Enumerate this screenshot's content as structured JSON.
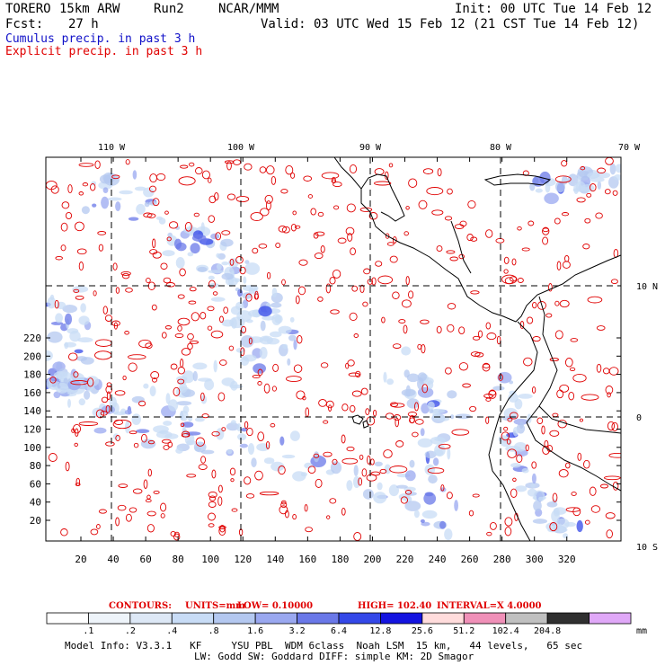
{
  "header": {
    "model": "TORERO",
    "resolution": "15km ARW",
    "run": "Run2",
    "org": "NCAR/MMM",
    "fcst_label": "Fcst:",
    "fcst_value": "27 h",
    "init": "Init: 00 UTC Tue 14 Feb 12",
    "valid": "Valid: 03 UTC Wed 15 Feb 12 (21 CST Tue 14 Feb 12)",
    "cumulus": "Cumulus precip. in past 3 h",
    "explicit": "Explicit precip. in past 3 h"
  },
  "map": {
    "lon_labels": [
      "110 W",
      "100 W",
      "90 W",
      "80 W",
      "70 W"
    ],
    "lat_labels": [
      "10 N",
      "0",
      "10 S"
    ],
    "y_ticks": [
      "20",
      "40",
      "60",
      "80",
      "100",
      "120",
      "140",
      "160",
      "180",
      "200",
      "220"
    ],
    "x_ticks": [
      "20",
      "40",
      "60",
      "80",
      "100",
      "120",
      "140",
      "160",
      "180",
      "200",
      "220",
      "240",
      "260",
      "280",
      "300",
      "320"
    ],
    "colors": {
      "cumulus": "#6a78e8",
      "explicit": "#e00000",
      "land": "#000000",
      "grid": "#000000"
    }
  },
  "contours": {
    "label": "CONTOURS:",
    "units": "UNITS=mm",
    "low": "LOW= 0.10000",
    "high": "HIGH= 102.40",
    "interval": "INTERVAL=X 4.0000"
  },
  "colorbar": {
    "labels": [
      ".1",
      ".2",
      ".4",
      ".8",
      "1.6",
      "3.2",
      "6.4",
      "12.8",
      "25.6",
      "51.2",
      "102.4",
      "204.8"
    ],
    "unit": "mm",
    "colors": [
      "#ffffff",
      "#eef4fa",
      "#dde8f6",
      "#c8dcf6",
      "#b4c8f0",
      "#9aa8f0",
      "#6a78e8",
      "#3448e8",
      "#1414e0",
      "#ffdcdc",
      "#f090b8",
      "#c0c0c0",
      "#303030",
      "#e0a8f8"
    ]
  },
  "model_info": {
    "line1": "Model Info: V3.3.1   KF     YSU PBL  WDM 6class  Noah LSM  15 km,   44 levels,   65 sec",
    "line2": "LW: Godd SW: Goddard DIFF: simple KM: 2D Smagor"
  }
}
